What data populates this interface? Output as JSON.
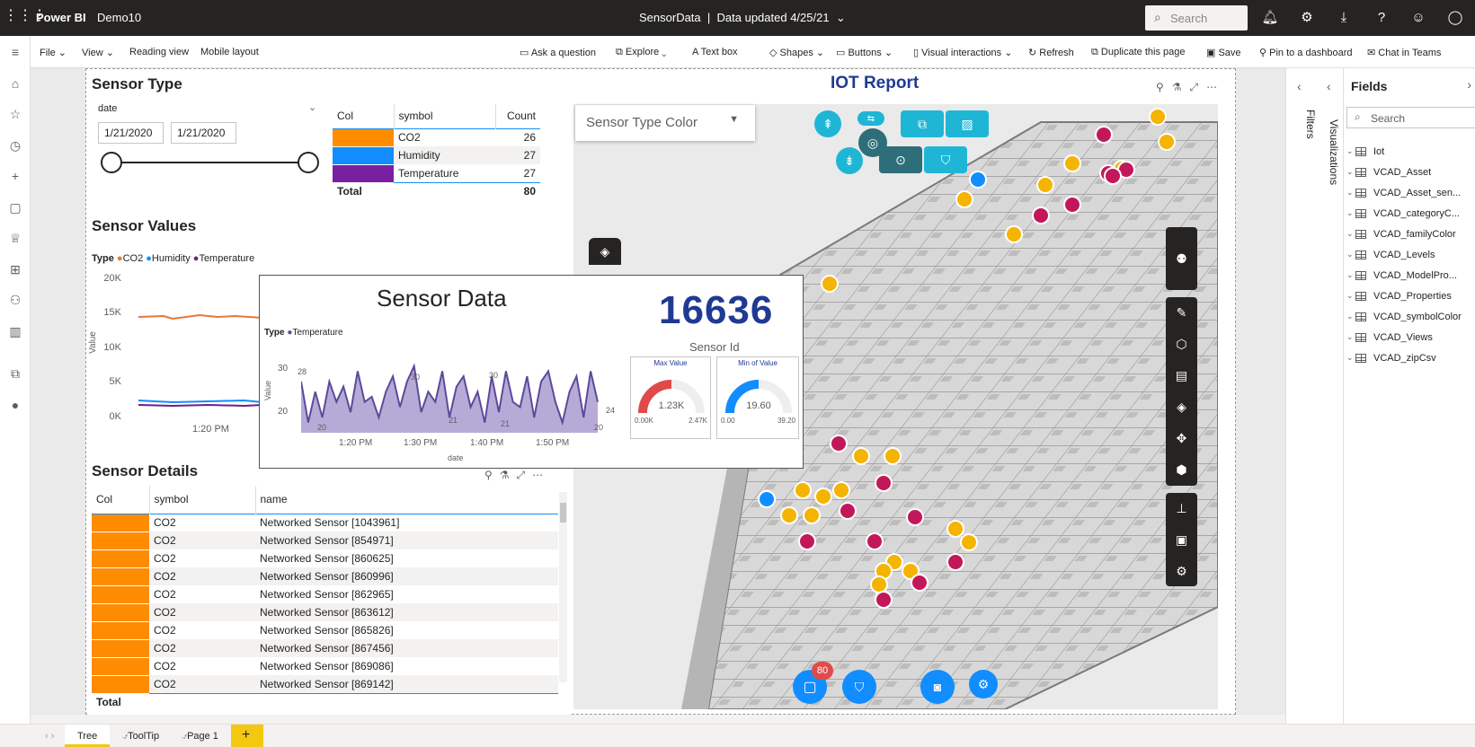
{
  "app": {
    "brand": "Power BI",
    "workspace": "Demo10",
    "report_title": "SensorData",
    "updated": "Data updated 4/25/21",
    "search_placeholder": "Search"
  },
  "cmdbar": {
    "file": "File",
    "view": "View",
    "reading_view": "Reading view",
    "mobile_layout": "Mobile layout",
    "ask": "Ask a question",
    "explore": "Explore",
    "text_box": "Text box",
    "shapes": "Shapes",
    "buttons": "Buttons",
    "visual_interactions": "Visual interactions",
    "refresh": "Refresh",
    "duplicate": "Duplicate this page",
    "save": "Save",
    "pin": "Pin to a dashboard",
    "chat": "Chat in Teams"
  },
  "sensor_type": {
    "title": "Sensor Type",
    "slicer_field": "date",
    "date_from": "1/21/2020",
    "date_to": "1/21/2020",
    "headers": [
      "Col",
      "symbol",
      "Count"
    ],
    "rows": [
      {
        "symbol": "CO2",
        "count": "26",
        "color": "#ff8c00"
      },
      {
        "symbol": "Humidity",
        "count": "27",
        "color": "#118dff"
      },
      {
        "symbol": "Temperature",
        "count": "27",
        "color": "#7b1fa2"
      }
    ],
    "total_label": "Total",
    "total_count": "80"
  },
  "sensor_values": {
    "title": "Sensor Values",
    "legend_title": "Type",
    "legend": [
      {
        "name": "CO2",
        "color": "#e8763a"
      },
      {
        "name": "Humidity",
        "color": "#118dff"
      },
      {
        "name": "Temperature",
        "color": "#6b1f8a"
      }
    ],
    "y_ticks": [
      "20K",
      "15K",
      "10K",
      "5K",
      "0K"
    ],
    "y_label": "Value",
    "x_tick": "1:20 PM"
  },
  "sensor_details": {
    "title": "Sensor Details",
    "headers": [
      "Col",
      "symbol",
      "name"
    ],
    "rows": [
      {
        "symbol": "CO2",
        "name": "Networked Sensor [1043961]"
      },
      {
        "symbol": "CO2",
        "name": "Networked Sensor [854971]"
      },
      {
        "symbol": "CO2",
        "name": "Networked Sensor [860625]"
      },
      {
        "symbol": "CO2",
        "name": "Networked Sensor [860996]"
      },
      {
        "symbol": "CO2",
        "name": "Networked Sensor [862965]"
      },
      {
        "symbol": "CO2",
        "name": "Networked Sensor [863612]"
      },
      {
        "symbol": "CO2",
        "name": "Networked Sensor [865826]"
      },
      {
        "symbol": "CO2",
        "name": "Networked Sensor [867456]"
      },
      {
        "symbol": "CO2",
        "name": "Networked Sensor [869086]"
      },
      {
        "symbol": "CO2",
        "name": "Networked Sensor [869142]"
      }
    ],
    "total_label": "Total",
    "row_color": "#ff8c00"
  },
  "tooltip": {
    "title": "Sensor Data",
    "legend_title": "Type",
    "legend_item": "Temperature",
    "sensor_id": "16636",
    "sensor_id_label": "Sensor Id",
    "max_label": "Max Value",
    "max_value": "1.23K",
    "max_min": "0.00K",
    "max_max": "2.47K",
    "max_fraction": 0.5,
    "min_label": "Min of Value",
    "min_value": "19.60",
    "min_min": "0.00",
    "min_max": "39.20",
    "min_fraction": 0.5,
    "y_label": "Value",
    "x_label": "date",
    "y_ticks": [
      "30",
      "20"
    ],
    "x_ticks": [
      "1:20 PM",
      "1:30 PM",
      "1:40 PM",
      "1:50 PM"
    ],
    "data_labels": [
      "28",
      "20",
      "30",
      "21",
      "30",
      "21",
      "20",
      "24"
    ]
  },
  "iot": {
    "title": "IOT Report",
    "dropdown": "Sensor Type Color",
    "badge": "80"
  },
  "right_panes": {
    "filters": "Filters",
    "visualizations": "Visualizations",
    "fields_title": "Fields",
    "search_placeholder": "Search",
    "fields": [
      "Iot",
      "VCAD_Asset",
      "VCAD_Asset_sen...",
      "VCAD_categoryC...",
      "VCAD_familyColor",
      "VCAD_Levels",
      "VCAD_ModelPro...",
      "VCAD_Properties",
      "VCAD_symbolColor",
      "VCAD_Views",
      "VCAD_zipCsv"
    ]
  },
  "tabs": [
    "Tree",
    "ToolTip",
    "Page 1"
  ],
  "colors": {
    "accent": "#f2c811",
    "tooltip_purple": "#5b4a9b",
    "gauge_red": "#e04a4a",
    "gauge_blue": "#118dff",
    "teal": "#1fb6d6"
  }
}
